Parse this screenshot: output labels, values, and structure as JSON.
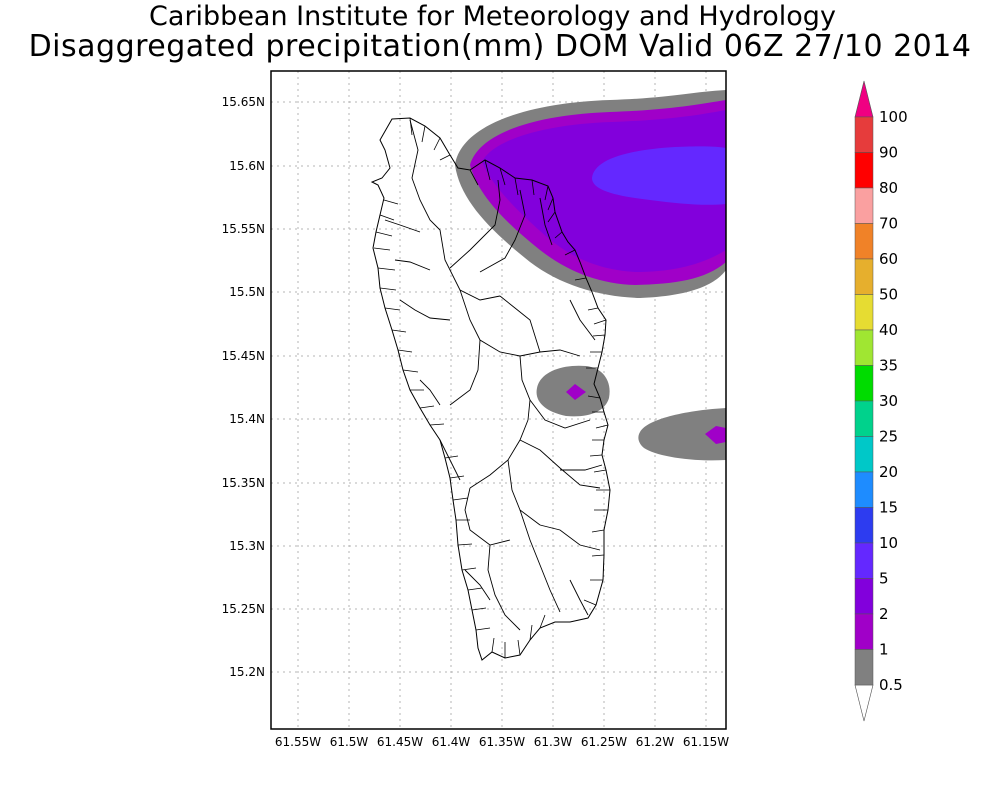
{
  "title_line1": "Caribbean Institute for Meteorology and Hydrology",
  "title_line2": "Disaggregated precipitation(mm) DOM Valid 06Z 27/10 2014",
  "x_ticks": [
    "61.55W",
    "61.5W",
    "61.45W",
    "61.4W",
    "61.35W",
    "61.3W",
    "61.25W",
    "61.2W",
    "61.15W"
  ],
  "y_ticks": [
    "15.65N",
    "15.6N",
    "15.55N",
    "15.5N",
    "15.45N",
    "15.4N",
    "15.35N",
    "15.3N",
    "15.25N",
    "15.2N"
  ],
  "colorbar": {
    "levels": [
      {
        "label": "0.5",
        "color": "#808080"
      },
      {
        "label": "1",
        "color": "#a000c8"
      },
      {
        "label": "2",
        "color": "#8200dc"
      },
      {
        "label": "5",
        "color": "#6428ff"
      },
      {
        "label": "10",
        "color": "#2d3cf0"
      },
      {
        "label": "15",
        "color": "#1e8cff"
      },
      {
        "label": "20",
        "color": "#00c8c8"
      },
      {
        "label": "25",
        "color": "#00d28c"
      },
      {
        "label": "30",
        "color": "#00dc00"
      },
      {
        "label": "35",
        "color": "#a0e632"
      },
      {
        "label": "40",
        "color": "#e6dc32"
      },
      {
        "label": "50",
        "color": "#e6af2d"
      },
      {
        "label": "60",
        "color": "#f08228"
      },
      {
        "label": "70",
        "color": "#faa0a0"
      },
      {
        "label": "80",
        "color": "#ff0000"
      },
      {
        "label": "90",
        "color": "#e63c3c"
      },
      {
        "label": "100",
        "color": "#f00082"
      }
    ]
  }
}
